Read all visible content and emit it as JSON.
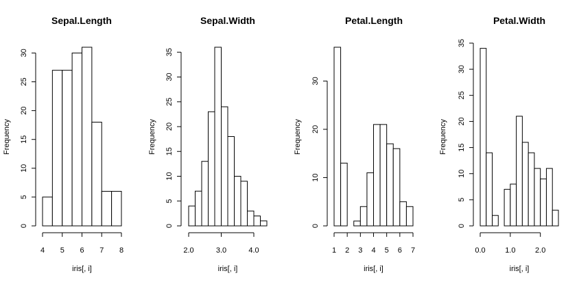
{
  "chart_data": [
    {
      "type": "bar",
      "title": "Sepal.Length",
      "xlabel": "iris[, i]",
      "ylabel": "Frequency",
      "bin_edges": [
        4,
        4.5,
        5,
        5.5,
        6,
        6.5,
        7,
        7.5,
        8
      ],
      "values": [
        5,
        27,
        27,
        30,
        31,
        18,
        6,
        6
      ],
      "xlim": [
        4,
        8
      ],
      "ylim": [
        0,
        31
      ],
      "xticks": [
        4,
        5,
        6,
        7,
        8
      ],
      "xtick_labels": [
        "4",
        "5",
        "6",
        "7",
        "8"
      ],
      "yticks": [
        0,
        5,
        10,
        15,
        20,
        25,
        30
      ],
      "ytick_labels": [
        "0",
        "5",
        "10",
        "15",
        "20",
        "25",
        "30"
      ],
      "grid": false
    },
    {
      "type": "bar",
      "title": "Sepal.Width",
      "xlabel": "iris[, i]",
      "ylabel": "Frequency",
      "bin_edges": [
        2.0,
        2.2,
        2.4,
        2.6,
        2.8,
        3.0,
        3.2,
        3.4,
        3.6,
        3.8,
        4.0,
        4.2,
        4.4
      ],
      "values": [
        4,
        7,
        13,
        23,
        36,
        24,
        18,
        10,
        9,
        3,
        2,
        1
      ],
      "xlim": [
        2.0,
        4.4
      ],
      "ylim": [
        0,
        36
      ],
      "xticks": [
        2.0,
        3.0,
        4.0
      ],
      "xtick_labels": [
        "2.0",
        "3.0",
        "4.0"
      ],
      "yticks": [
        0,
        5,
        10,
        15,
        20,
        25,
        30,
        35
      ],
      "ytick_labels": [
        "0",
        "5",
        "10",
        "15",
        "20",
        "25",
        "30",
        "35"
      ],
      "grid": false
    },
    {
      "type": "bar",
      "title": "Petal.Length",
      "xlabel": "iris[, i]",
      "ylabel": "Frequency",
      "bin_edges": [
        1,
        1.5,
        2,
        2.5,
        3,
        3.5,
        4,
        4.5,
        5,
        5.5,
        6,
        6.5,
        7
      ],
      "values": [
        37,
        13,
        0,
        1,
        4,
        11,
        21,
        21,
        17,
        16,
        5,
        4
      ],
      "xlim": [
        1,
        7
      ],
      "ylim": [
        0,
        37
      ],
      "xticks": [
        1,
        2,
        3,
        4,
        5,
        6,
        7
      ],
      "xtick_labels": [
        "1",
        "2",
        "3",
        "4",
        "5",
        "6",
        "7"
      ],
      "yticks": [
        0,
        10,
        20,
        30
      ],
      "ytick_labels": [
        "0",
        "10",
        "20",
        "30"
      ],
      "grid": false
    },
    {
      "type": "bar",
      "title": "Petal.Width",
      "xlabel": "iris[, i]",
      "ylabel": "Frequency",
      "bin_edges": [
        0.0,
        0.2,
        0.4,
        0.6,
        0.8,
        1.0,
        1.2,
        1.4,
        1.6,
        1.8,
        2.0,
        2.2,
        2.4,
        2.6
      ],
      "values": [
        34,
        14,
        2,
        0,
        7,
        8,
        21,
        16,
        14,
        11,
        9,
        11,
        3
      ],
      "xlim": [
        0.0,
        2.6
      ],
      "ylim": [
        0,
        35
      ],
      "xticks": [
        0.0,
        1.0,
        2.0
      ],
      "xtick_labels": [
        "0.0",
        "1.0",
        "2.0"
      ],
      "yticks": [
        0,
        5,
        10,
        15,
        20,
        25,
        30,
        35
      ],
      "ytick_labels": [
        "0",
        "5",
        "10",
        "15",
        "20",
        "25",
        "30",
        "35"
      ],
      "grid": false
    }
  ]
}
